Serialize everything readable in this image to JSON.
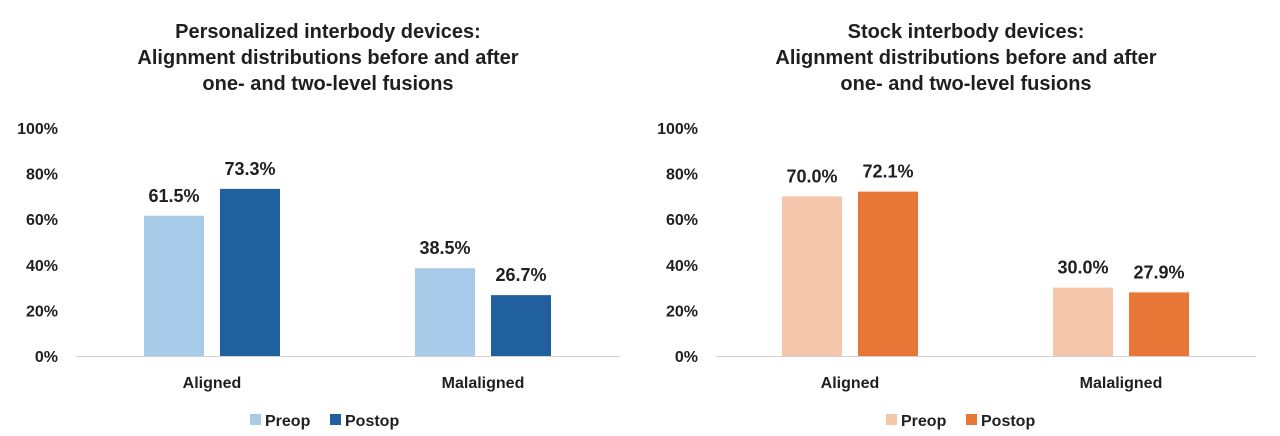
{
  "chart_data": [
    {
      "type": "bar",
      "title_lines": [
        "Personalized interbody devices:",
        "Alignment distributions before and after",
        "one- and two-level fusions"
      ],
      "categories": [
        "Aligned",
        "Malaligned"
      ],
      "series": [
        {
          "name": "Preop",
          "values": [
            61.5,
            38.5
          ],
          "labels": [
            "61.5%",
            "38.5%"
          ],
          "color": "#a9cbea"
        },
        {
          "name": "Postop",
          "values": [
            73.3,
            26.7
          ],
          "labels": [
            "73.3%",
            "26.7%"
          ],
          "color": "#21609e"
        }
      ],
      "ylim": [
        0,
        100
      ],
      "yticks": [
        "0%",
        "20%",
        "40%",
        "60%",
        "80%",
        "100%"
      ],
      "grid": false,
      "legend": "bottom"
    },
    {
      "type": "bar",
      "title_lines": [
        "Stock interbody devices:",
        "Alignment distributions before and after",
        "one- and two-level fusions"
      ],
      "categories": [
        "Aligned",
        "Malaligned"
      ],
      "series": [
        {
          "name": "Preop",
          "values": [
            70.0,
            30.0
          ],
          "labels": [
            "70.0%",
            "30.0%"
          ],
          "color": "#f5c6aa"
        },
        {
          "name": "Postop",
          "values": [
            72.1,
            27.9
          ],
          "labels": [
            "72.1%",
            "27.9%"
          ],
          "color": "#e87636"
        }
      ],
      "ylim": [
        0,
        100
      ],
      "yticks": [
        "0%",
        "20%",
        "40%",
        "60%",
        "80%",
        "100%"
      ],
      "grid": false,
      "legend": "bottom"
    }
  ]
}
